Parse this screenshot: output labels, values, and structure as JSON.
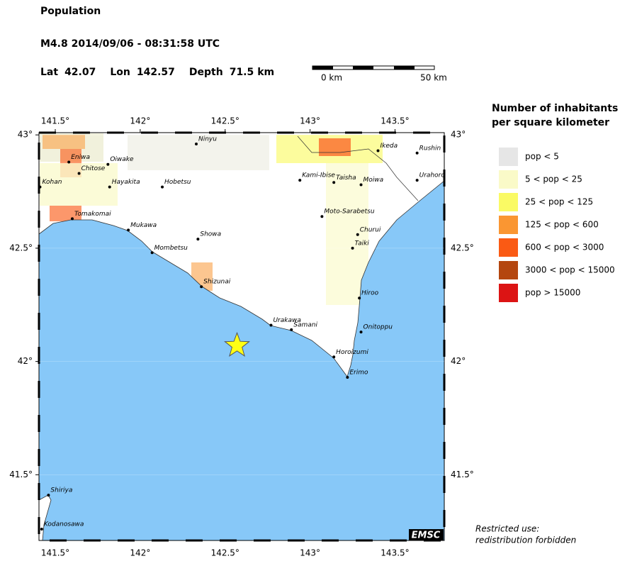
{
  "header": {
    "title": "Population",
    "event": "M4.8  2014/09/06 - 08:31:58 UTC",
    "location": [
      {
        "label": "Lat",
        "value": 42.07
      },
      {
        "label": "Lon",
        "value": 142.57
      },
      {
        "label": "Depth",
        "value": 71.5,
        "unit": "km"
      }
    ]
  },
  "scale_bar": {
    "labels": [
      "0 km",
      "50 km"
    ]
  },
  "map": {
    "lonlim": [
      141.404,
      143.79
    ],
    "latlim": [
      41.21,
      43.01
    ],
    "xticks": [
      {
        "value": 141.5,
        "label": "141.5°"
      },
      {
        "value": 142,
        "label": "142°"
      },
      {
        "value": 142.5,
        "label": "142.5°"
      },
      {
        "value": 143,
        "label": "143°"
      },
      {
        "value": 143.5,
        "label": "143.5°"
      }
    ],
    "yticks": [
      {
        "value": 43,
        "label": "43°"
      },
      {
        "value": 42.5,
        "label": "42.5°"
      },
      {
        "value": 42,
        "label": "42°"
      },
      {
        "value": 41.5,
        "label": "41.5°"
      }
    ],
    "places": [
      {
        "name": "Eniwa",
        "lon": 141.58,
        "lat": 42.88
      },
      {
        "name": "Chitose",
        "lon": 141.64,
        "lat": 42.83
      },
      {
        "name": "Kohan",
        "lon": 141.41,
        "lat": 42.77
      },
      {
        "name": "Hayakita",
        "lon": 141.82,
        "lat": 42.77
      },
      {
        "name": "Oiwake",
        "lon": 141.81,
        "lat": 42.87
      },
      {
        "name": "Tomakomai",
        "lon": 141.6,
        "lat": 42.63
      },
      {
        "name": "Ninyu",
        "lon": 142.33,
        "lat": 42.96
      },
      {
        "name": "Hobetsu",
        "lon": 142.13,
        "lat": 42.77
      },
      {
        "name": "Mukawa",
        "lon": 141.93,
        "lat": 42.58
      },
      {
        "name": "Showa",
        "lon": 142.34,
        "lat": 42.54
      },
      {
        "name": "Mombetsu",
        "lon": 142.07,
        "lat": 42.48
      },
      {
        "name": "Shizunai",
        "lon": 142.36,
        "lat": 42.33
      },
      {
        "name": "Urakawa",
        "lon": 142.77,
        "lat": 42.16
      },
      {
        "name": "Samani",
        "lon": 142.89,
        "lat": 42.14
      },
      {
        "name": "Horoizumi",
        "lon": 143.14,
        "lat": 42.02
      },
      {
        "name": "Erimo",
        "lon": 143.22,
        "lat": 41.93
      },
      {
        "name": "Onitoppu",
        "lon": 143.3,
        "lat": 42.13
      },
      {
        "name": "Hiroo",
        "lon": 143.29,
        "lat": 42.28
      },
      {
        "name": "Taiki",
        "lon": 143.25,
        "lat": 42.5
      },
      {
        "name": "Churui",
        "lon": 143.28,
        "lat": 42.56
      },
      {
        "name": "Moto-Sarabetsu",
        "lon": 143.07,
        "lat": 42.64
      },
      {
        "name": "Kami-Ibise",
        "lon": 142.94,
        "lat": 42.8
      },
      {
        "name": "Taisha",
        "lon": 143.14,
        "lat": 42.79
      },
      {
        "name": "Moiwa",
        "lon": 143.3,
        "lat": 42.78
      },
      {
        "name": "Ikeda",
        "lon": 143.4,
        "lat": 42.93
      },
      {
        "name": "Rushin",
        "lon": 143.63,
        "lat": 42.92
      },
      {
        "name": "Urahoro",
        "lon": 143.63,
        "lat": 42.8
      },
      {
        "name": "Shiriya",
        "lon": 141.46,
        "lat": 41.41
      },
      {
        "name": "Kodanosawa",
        "lon": 141.42,
        "lat": 41.26
      }
    ],
    "logo": "EMSC"
  },
  "legend": {
    "title": [
      "Number of inhabitants",
      "per square kilometer"
    ],
    "entries": [
      {
        "label": "pop < 5",
        "color": "#e6e6e6"
      },
      {
        "label": "5 < pop < 25",
        "color": "#fafac8"
      },
      {
        "label": "25 < pop < 125",
        "color": "#fafa64"
      },
      {
        "label": "125 < pop < 600",
        "color": "#fa9632"
      },
      {
        "label": "600 < pop < 3000",
        "color": "#fa5a14"
      },
      {
        "label": "3000 < pop < 15000",
        "color": "#b4460f"
      },
      {
        "label": "pop > 15000",
        "color": "#dc1414"
      }
    ]
  },
  "note": [
    "Restricted use:",
    "redistribution forbidden"
  ]
}
